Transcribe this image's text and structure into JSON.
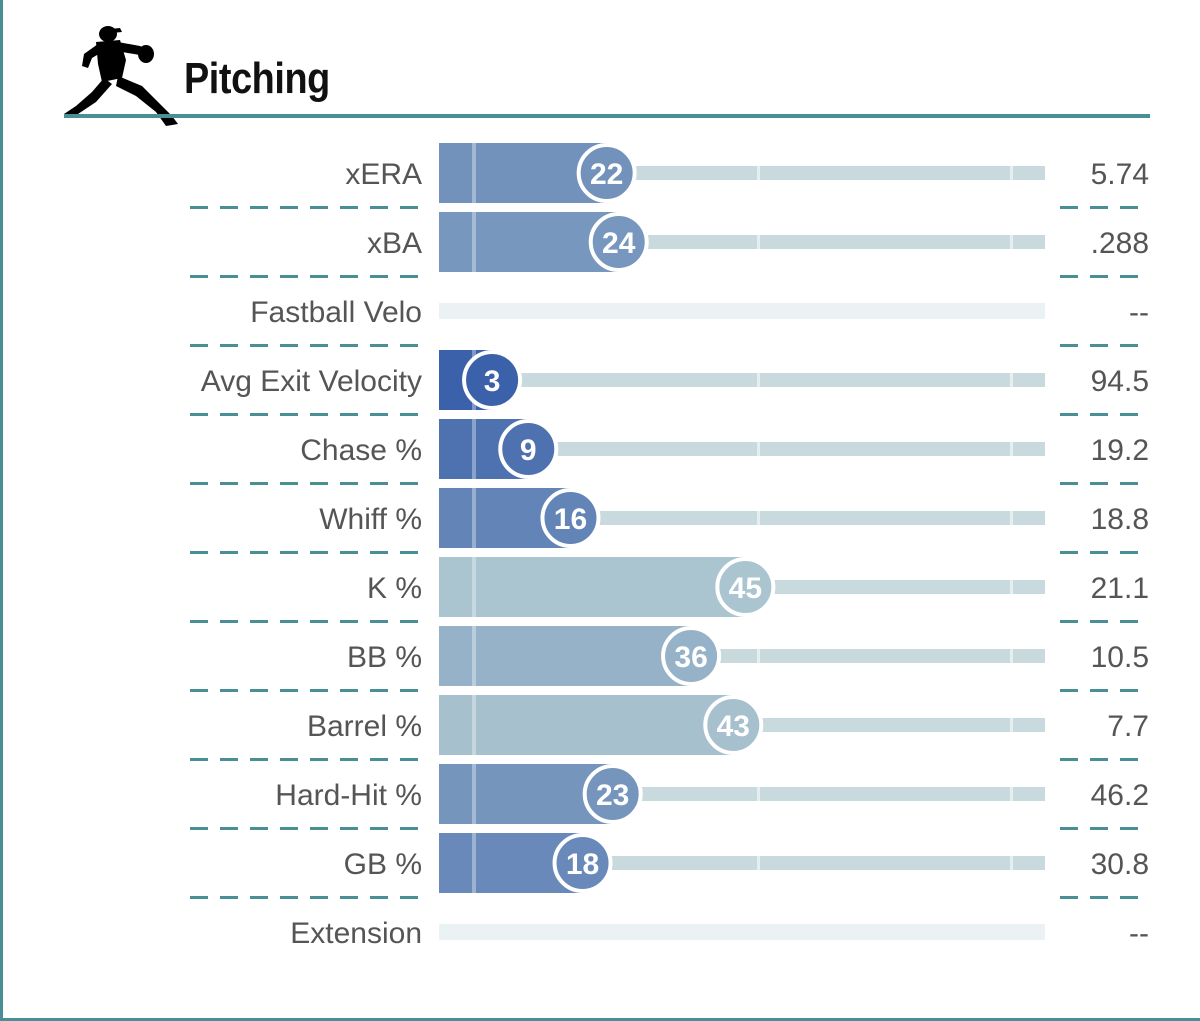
{
  "header": {
    "title": "Pitching",
    "icon": "pitcher-silhouette-icon"
  },
  "colors": {
    "frame": "#4a8f96",
    "track": "#c8dadd",
    "track_empty": "#eaf2f3",
    "divider": "#4a8f96",
    "label_text": "#555555",
    "low_percentile": "#2f56a6",
    "mid_percentile": "#b6cfd3"
  },
  "chart_data": {
    "type": "bar",
    "xlim": [
      0,
      100
    ],
    "orientation": "horizontal",
    "rows": [
      {
        "label": "xERA",
        "percentile": 22,
        "value": "5.74"
      },
      {
        "label": "xBA",
        "percentile": 24,
        "value": ".288"
      },
      {
        "label": "Fastball Velo",
        "percentile": null,
        "value": "--"
      },
      {
        "label": "Avg Exit Velocity",
        "percentile": 3,
        "value": "94.5"
      },
      {
        "label": "Chase %",
        "percentile": 9,
        "value": "19.2"
      },
      {
        "label": "Whiff %",
        "percentile": 16,
        "value": "18.8"
      },
      {
        "label": "K %",
        "percentile": 45,
        "value": "21.1"
      },
      {
        "label": "BB %",
        "percentile": 36,
        "value": "10.5"
      },
      {
        "label": "Barrel %",
        "percentile": 43,
        "value": "7.7"
      },
      {
        "label": "Hard-Hit %",
        "percentile": 23,
        "value": "46.2"
      },
      {
        "label": "GB %",
        "percentile": 18,
        "value": "30.8"
      },
      {
        "label": "Extension",
        "percentile": null,
        "value": "--"
      }
    ]
  }
}
